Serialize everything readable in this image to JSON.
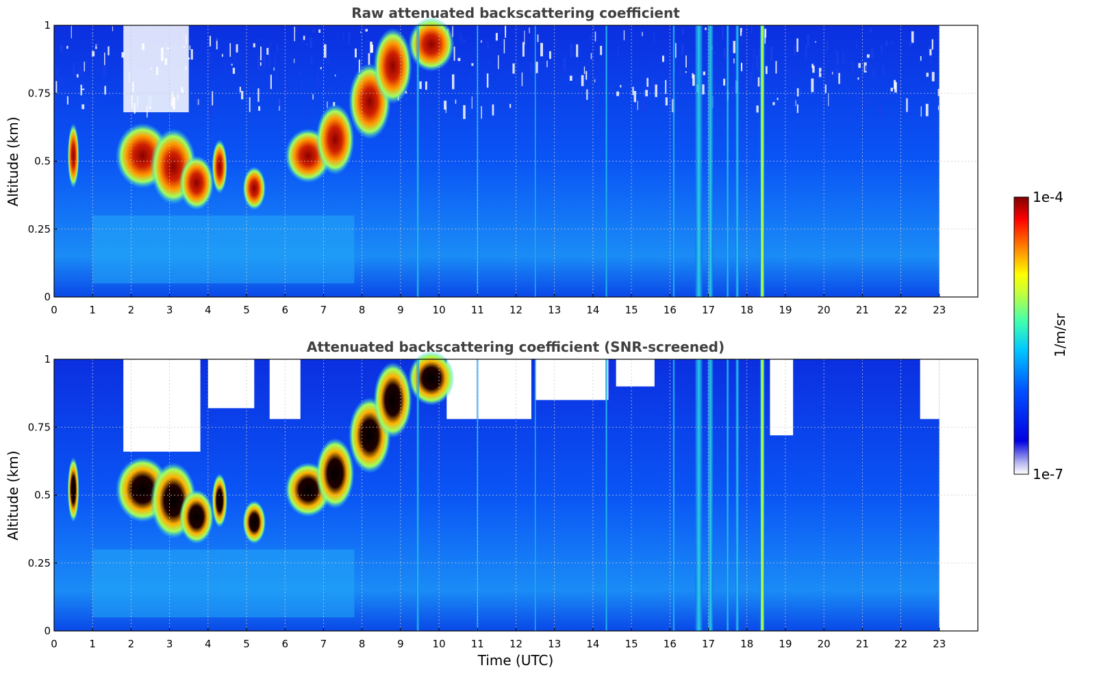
{
  "chart_data": [
    {
      "type": "heatmap",
      "title": "Raw attenuated backscattering coefficient",
      "xlabel": "",
      "ylabel": "Altitude (km)",
      "xlim": [
        0,
        24
      ],
      "ylim": [
        0,
        1
      ],
      "x_ticks": [
        "0",
        "1",
        "2",
        "3",
        "4",
        "5",
        "6",
        "7",
        "8",
        "9",
        "10",
        "11",
        "12",
        "13",
        "14",
        "15",
        "16",
        "17",
        "18",
        "19",
        "20",
        "21",
        "22",
        "23"
      ],
      "y_ticks": [
        "0",
        "0.25",
        "0.5",
        "0.75",
        "1"
      ],
      "grid": true,
      "data_extent_hours": [
        0,
        23
      ],
      "features": [
        {
          "name": "aerosol/cloud layer",
          "x": [
            1.8,
            4.5
          ],
          "y": [
            0.32,
            0.65
          ],
          "intensity": "high"
        },
        {
          "name": "rising layer",
          "x": [
            5.8,
            10.8
          ],
          "y": [
            0.45,
            1.0
          ],
          "intensity": "high"
        },
        {
          "name": "precipitation streaks",
          "x": [
            16.6,
            18.5
          ],
          "y": [
            0,
            1
          ],
          "intensity": "medium"
        }
      ]
    },
    {
      "type": "heatmap",
      "title": "Attenuated backscattering coefficient (SNR-screened)",
      "xlabel": "Time (UTC)",
      "ylabel": "Altitude (km)",
      "xlim": [
        0,
        24
      ],
      "ylim": [
        0,
        1
      ],
      "x_ticks": [
        "0",
        "1",
        "2",
        "3",
        "4",
        "5",
        "6",
        "7",
        "8",
        "9",
        "10",
        "11",
        "12",
        "13",
        "14",
        "15",
        "16",
        "17",
        "18",
        "19",
        "20",
        "21",
        "22",
        "23"
      ],
      "y_ticks": [
        "0",
        "0.25",
        "0.5",
        "0.75",
        "1"
      ],
      "grid": true,
      "data_extent_hours": [
        0,
        23
      ]
    }
  ],
  "colorbar": {
    "label": "1/m/sr",
    "max_label": "1e-4",
    "min_label": "1e-7",
    "scale": "log",
    "colormap": "jet"
  }
}
